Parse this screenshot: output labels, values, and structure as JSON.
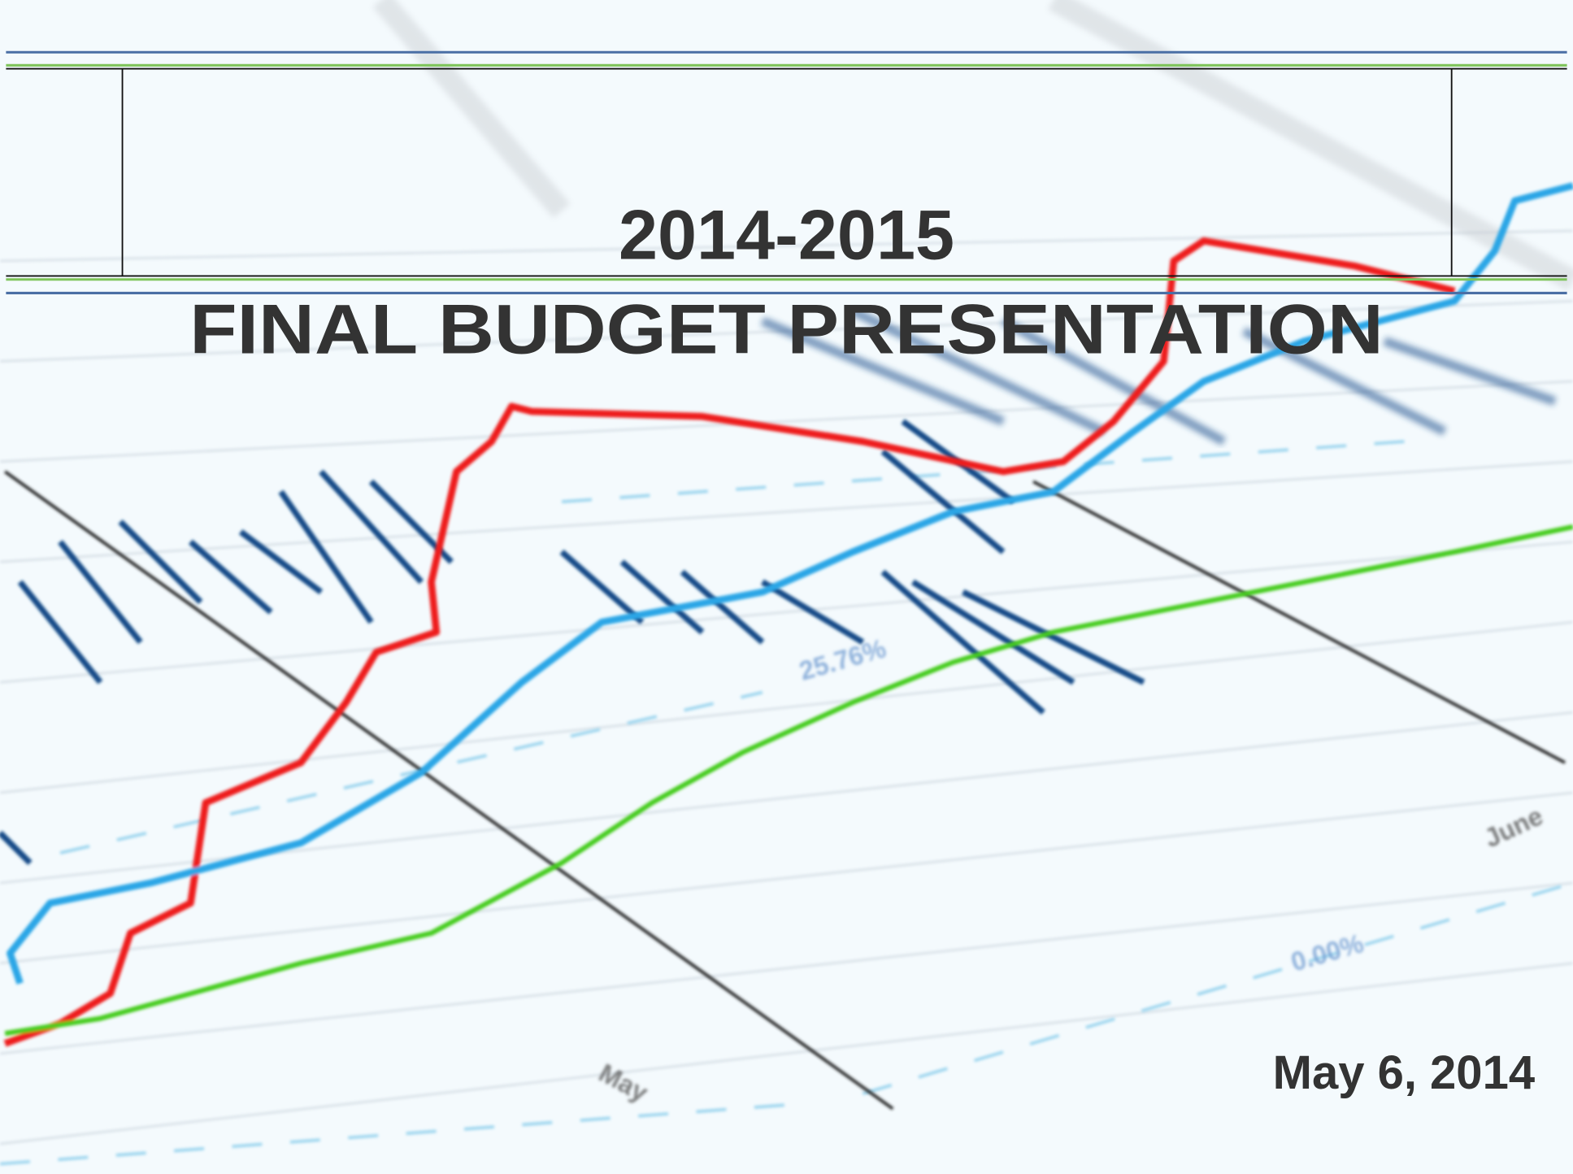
{
  "slide": {
    "title_line_1": "2014-2015",
    "title_line_2": "FINAL BUDGET PRESENTATION",
    "date": "May 6, 2014"
  },
  "background_image": {
    "labels": [
      "May",
      "June",
      "25.76%",
      "0.00%"
    ]
  }
}
